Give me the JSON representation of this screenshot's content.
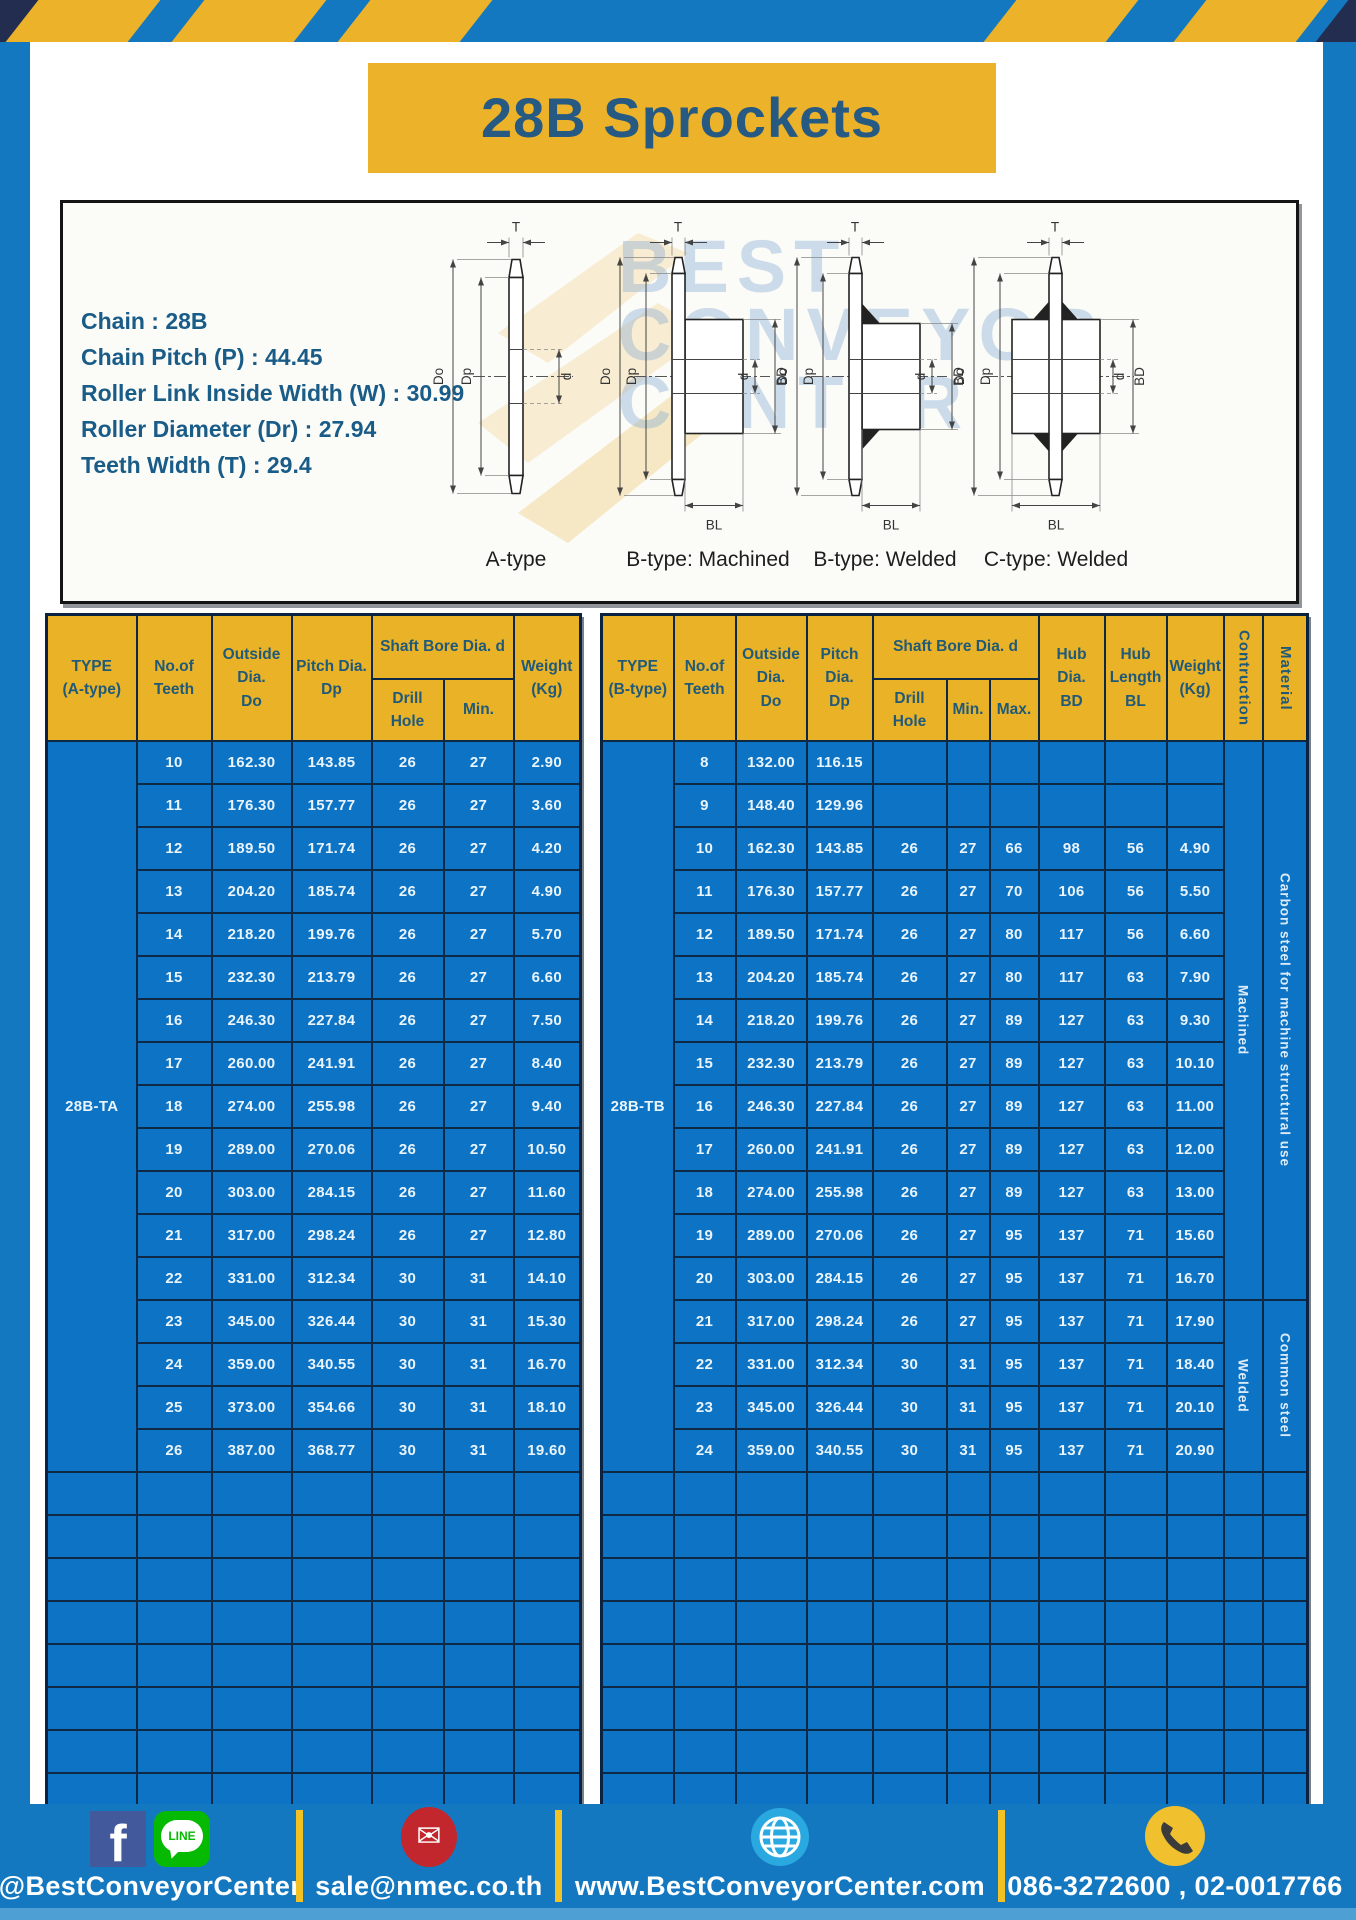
{
  "page": {
    "title": "28B Sprockets"
  },
  "specs": [
    "Chain : 28B",
    "Chain Pitch (P) : 44.45",
    "Roller Link Inside Width (W) : 30.99",
    "Roller Diameter (Dr) : 27.94",
    "Teeth Width (T) : 29.4"
  ],
  "watermark": {
    "line1": "BEST",
    "line2": "CONVEYOR",
    "line3": "CENTER"
  },
  "diagrams": {
    "captions": [
      "A-type",
      "B-type: Machined",
      "B-type: Welded",
      "C-type: Welded"
    ],
    "labels": {
      "t": "T",
      "outside": "Do",
      "pitch": "Dp",
      "bore": "d",
      "hub_dia": "BD",
      "hub_len": "BL"
    }
  },
  "left_table": {
    "header": {
      "type": "TYPE\n(A-type)",
      "teeth": "No.of\nTeeth",
      "outside": "Outside\nDia.\nDo",
      "pitch": "Pitch Dia.\nDp",
      "shaft_bore": "Shaft Bore Dia. d",
      "drill_hole": "Drill Hole",
      "min": "Min.",
      "weight": "Weight\n(Kg)"
    }
  },
  "right_table": {
    "header": {
      "type": "TYPE\n(B-type)",
      "teeth": "No.of\nTeeth",
      "outside": "Outside\nDia.\nDo",
      "pitch": "Pitch Dia.\nDp",
      "shaft_bore": "Shaft Bore Dia. d",
      "drill_hole": "Drill Hole",
      "min": "Min.",
      "max": "Max.",
      "hub_dia": "Hub Dia.\nBD",
      "hub_length": "Hub\nLength\nBL",
      "weight": "Weight\n(Kg)",
      "construction": "Contruction",
      "material": "Material"
    }
  },
  "tables": [
    {
      "type_label": "28B-TA",
      "empty_rows": 8,
      "side_groups": [],
      "data_rows": [
        [
          "10",
          "162.30",
          "143.85",
          "26",
          "27",
          "2.90"
        ],
        [
          "11",
          "176.30",
          "157.77",
          "26",
          "27",
          "3.60"
        ],
        [
          "12",
          "189.50",
          "171.74",
          "26",
          "27",
          "4.20"
        ],
        [
          "13",
          "204.20",
          "185.74",
          "26",
          "27",
          "4.90"
        ],
        [
          "14",
          "218.20",
          "199.76",
          "26",
          "27",
          "5.70"
        ],
        [
          "15",
          "232.30",
          "213.79",
          "26",
          "27",
          "6.60"
        ],
        [
          "16",
          "246.30",
          "227.84",
          "26",
          "27",
          "7.50"
        ],
        [
          "17",
          "260.00",
          "241.91",
          "26",
          "27",
          "8.40"
        ],
        [
          "18",
          "274.00",
          "255.98",
          "26",
          "27",
          "9.40"
        ],
        [
          "19",
          "289.00",
          "270.06",
          "26",
          "27",
          "10.50"
        ],
        [
          "20",
          "303.00",
          "284.15",
          "26",
          "27",
          "11.60"
        ],
        [
          "21",
          "317.00",
          "298.24",
          "26",
          "27",
          "12.80"
        ],
        [
          "22",
          "331.00",
          "312.34",
          "30",
          "31",
          "14.10"
        ],
        [
          "23",
          "345.00",
          "326.44",
          "30",
          "31",
          "15.30"
        ],
        [
          "24",
          "359.00",
          "340.55",
          "30",
          "31",
          "16.70"
        ],
        [
          "25",
          "373.00",
          "354.66",
          "30",
          "31",
          "18.10"
        ],
        [
          "26",
          "387.00",
          "368.77",
          "30",
          "31",
          "19.60"
        ]
      ]
    },
    {
      "type_label": "28B-TB",
      "empty_rows": 8,
      "side_groups": [
        {
          "spans": [
            {
              "label": "Machined",
              "rows": 13
            },
            {
              "label": "Welded",
              "rows": 4
            }
          ]
        },
        {
          "spans": [
            {
              "label": "Carbon steel for machine structural use",
              "rows": 13
            },
            {
              "label": "Common steel",
              "rows": 4
            }
          ]
        }
      ],
      "data_rows": [
        [
          "8",
          "132.00",
          "116.15",
          "",
          "",
          "",
          "",
          "",
          ""
        ],
        [
          "9",
          "148.40",
          "129.96",
          "",
          "",
          "",
          "",
          "",
          ""
        ],
        [
          "10",
          "162.30",
          "143.85",
          "26",
          "27",
          "66",
          "98",
          "56",
          "4.90"
        ],
        [
          "11",
          "176.30",
          "157.77",
          "26",
          "27",
          "70",
          "106",
          "56",
          "5.50"
        ],
        [
          "12",
          "189.50",
          "171.74",
          "26",
          "27",
          "80",
          "117",
          "56",
          "6.60"
        ],
        [
          "13",
          "204.20",
          "185.74",
          "26",
          "27",
          "80",
          "117",
          "63",
          "7.90"
        ],
        [
          "14",
          "218.20",
          "199.76",
          "26",
          "27",
          "89",
          "127",
          "63",
          "9.30"
        ],
        [
          "15",
          "232.30",
          "213.79",
          "26",
          "27",
          "89",
          "127",
          "63",
          "10.10"
        ],
        [
          "16",
          "246.30",
          "227.84",
          "26",
          "27",
          "89",
          "127",
          "63",
          "11.00"
        ],
        [
          "17",
          "260.00",
          "241.91",
          "26",
          "27",
          "89",
          "127",
          "63",
          "12.00"
        ],
        [
          "18",
          "274.00",
          "255.98",
          "26",
          "27",
          "89",
          "127",
          "63",
          "13.00"
        ],
        [
          "19",
          "289.00",
          "270.06",
          "26",
          "27",
          "95",
          "137",
          "71",
          "15.60"
        ],
        [
          "20",
          "303.00",
          "284.15",
          "26",
          "27",
          "95",
          "137",
          "71",
          "16.70"
        ],
        [
          "21",
          "317.00",
          "298.24",
          "26",
          "27",
          "95",
          "137",
          "71",
          "17.90"
        ],
        [
          "22",
          "331.00",
          "312.34",
          "30",
          "31",
          "95",
          "137",
          "71",
          "18.40"
        ],
        [
          "23",
          "345.00",
          "326.44",
          "30",
          "31",
          "95",
          "137",
          "71",
          "20.10"
        ],
        [
          "24",
          "359.00",
          "340.55",
          "30",
          "31",
          "95",
          "137",
          "71",
          "20.90"
        ]
      ]
    }
  ],
  "footer": {
    "facebook_icon_text": "f",
    "line_icon_text": "LINE",
    "facebook_handle": "@BestConveyorCenter",
    "email": "sale@nmec.co.th",
    "website": "www.BestConveyorCenter.com",
    "phone": "086-3272600 , 02-0017766"
  },
  "colors": {
    "page_blue": "#1478c0",
    "accent_yellow": "#ecb229",
    "table_cell_blue": "#0d73c4",
    "border_navy": "#0e2946",
    "header_text_teal": "#215a78",
    "title_text_blue": "#275a82",
    "dark_corner_navy": "#232d4f"
  }
}
